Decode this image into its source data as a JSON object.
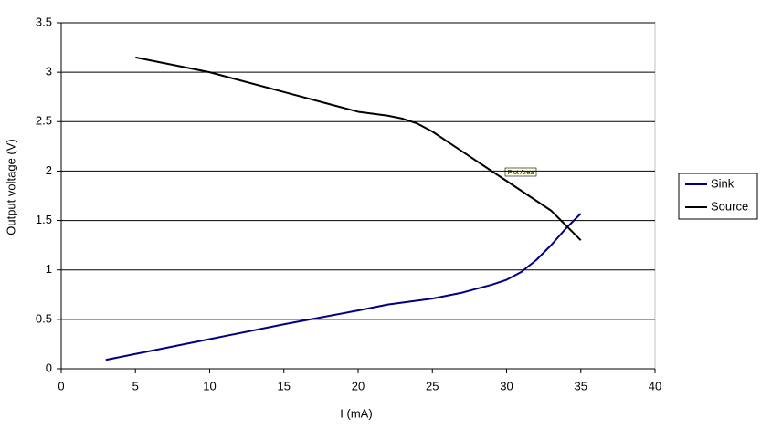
{
  "chart_data": {
    "type": "line",
    "x_label": "I (mA)",
    "y_label": "Output voltage (V)",
    "tooltip": "Plot Area",
    "xlim": [
      0,
      40
    ],
    "xticks": [
      0,
      5,
      10,
      15,
      20,
      25,
      30,
      35,
      40
    ],
    "ylim": [
      0,
      3.5
    ],
    "yticks": [
      0,
      0.5,
      1,
      1.5,
      2,
      2.5,
      3,
      3.5
    ],
    "grid": true,
    "legend": "right",
    "series": [
      {
        "name": "Sink",
        "color": "#000080",
        "x": [
          3,
          5,
          10,
          15,
          20,
          22,
          25,
          27,
          29,
          30,
          31,
          32,
          33,
          34,
          35
        ],
        "values": [
          0.09,
          0.15,
          0.3,
          0.45,
          0.59,
          0.65,
          0.71,
          0.77,
          0.85,
          0.9,
          0.98,
          1.1,
          1.25,
          1.42,
          1.57
        ]
      },
      {
        "name": "Source",
        "color": "#000000",
        "x": [
          5,
          10,
          15,
          20,
          22,
          23,
          24,
          25,
          27,
          30,
          33,
          35
        ],
        "values": [
          3.15,
          3.0,
          2.8,
          2.6,
          2.56,
          2.53,
          2.48,
          2.4,
          2.2,
          1.9,
          1.6,
          1.3
        ]
      }
    ]
  }
}
